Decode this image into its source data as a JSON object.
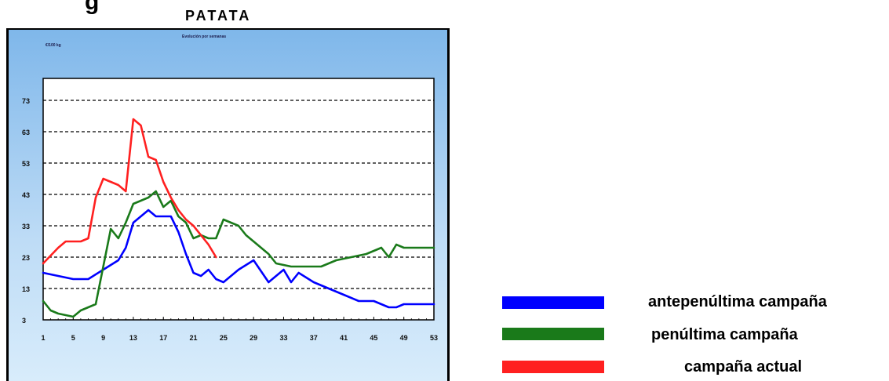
{
  "page": {
    "heading_fragment": "g",
    "colors": {
      "panel": "#a9d1f5",
      "plot": "#ffffff",
      "grid": "#000000"
    }
  },
  "chart_data": {
    "type": "line",
    "title": "PATATA",
    "subtitle": "Evolución por semanas",
    "unit_label": "€/100 kg",
    "xlabel": "",
    "ylabel": "",
    "x_ticks": [
      1,
      5,
      9,
      13,
      17,
      21,
      25,
      29,
      33,
      37,
      41,
      45,
      49,
      53
    ],
    "y_ticks": [
      3,
      13,
      23,
      33,
      43,
      53,
      63,
      73
    ],
    "xlim": [
      1,
      53
    ],
    "ylim": [
      3,
      80
    ],
    "grid": "horizontal dashed",
    "legend_position": "right",
    "series": [
      {
        "name": "antepenúltima campaña",
        "color": "#0000ff",
        "x": [
          1,
          3,
          5,
          7,
          9,
          11,
          12,
          13,
          14,
          15,
          16,
          17,
          18,
          19,
          20,
          21,
          22,
          23,
          24,
          25,
          27,
          29,
          31,
          33,
          34,
          35,
          37,
          39,
          41,
          43,
          45,
          47,
          48,
          49,
          51,
          53
        ],
        "y": [
          18,
          17,
          16,
          16,
          19,
          22,
          26,
          34,
          36,
          38,
          36,
          36,
          36,
          31,
          24,
          18,
          17,
          19,
          16,
          15,
          19,
          22,
          15,
          19,
          15,
          18,
          15,
          13,
          11,
          9,
          9,
          7,
          7,
          8,
          8,
          8
        ]
      },
      {
        "name": "penúltima campaña",
        "color": "#1a7a1a",
        "x": [
          1,
          2,
          3,
          5,
          6,
          8,
          9,
          10,
          11,
          12,
          13,
          14,
          15,
          16,
          17,
          18,
          19,
          20,
          21,
          22,
          23,
          24,
          25,
          26,
          27,
          28,
          29,
          31,
          32,
          34,
          36,
          38,
          40,
          42,
          44,
          46,
          47,
          48,
          49,
          51,
          53
        ],
        "y": [
          9,
          6,
          5,
          4,
          6,
          8,
          20,
          32,
          29,
          34,
          40,
          41,
          42,
          44,
          39,
          41,
          36,
          34,
          29,
          30,
          29,
          29,
          35,
          34,
          33,
          30,
          28,
          24,
          21,
          20,
          20,
          20,
          22,
          23,
          24,
          26,
          23,
          27,
          26,
          26,
          26
        ]
      },
      {
        "name": "campaña actual",
        "color": "#ff2020",
        "x": [
          1,
          3,
          4,
          6,
          7,
          8,
          9,
          10,
          11,
          12,
          13,
          14,
          15,
          16,
          17,
          18,
          19,
          20,
          21,
          22,
          23,
          24
        ],
        "y": [
          21,
          26,
          28,
          28,
          29,
          42,
          48,
          47,
          46,
          44,
          67,
          65,
          55,
          54,
          47,
          42,
          38,
          35,
          33,
          30,
          27,
          23
        ]
      }
    ]
  }
}
